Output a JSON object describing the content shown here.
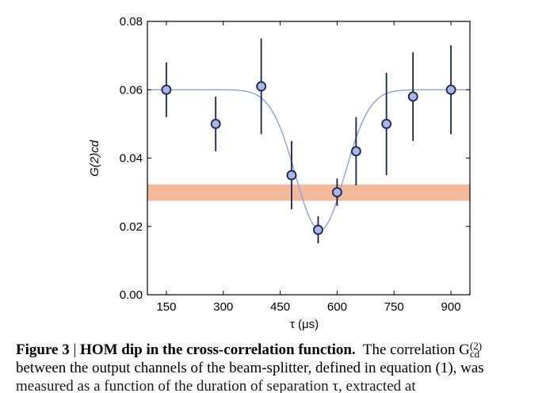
{
  "chart_data": {
    "type": "scatter",
    "title": "",
    "xlabel": "τ (μs)",
    "ylabel": "G(2)cd",
    "xlim": [
      100,
      950
    ],
    "ylim": [
      0,
      0.08
    ],
    "x_ticks": [
      "150",
      "300",
      "450",
      "600",
      "750",
      "900"
    ],
    "y_ticks": [
      "0.00",
      "0.02",
      "0.04",
      "0.06",
      "0.08"
    ],
    "series": [
      {
        "x": [
          150,
          280,
          400,
          480,
          550,
          600,
          650,
          730,
          800,
          900
        ],
        "y": [
          0.06,
          0.05,
          0.061,
          0.035,
          0.019,
          0.03,
          0.042,
          0.05,
          0.058,
          0.06
        ],
        "yerr": [
          0.008,
          0.008,
          0.014,
          0.01,
          0.004,
          0.004,
          0.01,
          0.015,
          0.013,
          0.013
        ]
      }
    ],
    "band": {
      "ymin": 0.0275,
      "ymax": 0.0323,
      "color": "#f4b89a"
    },
    "fit_curve": {
      "color": "#8fa8d8",
      "baseline": 0.06,
      "min": 0.019,
      "center": 555,
      "width": 65
    },
    "marker_color": "#a9b6e6",
    "marker_edge_color": "#1a2250",
    "errorbar_color": "#1a2250",
    "grid": false
  },
  "caption": {
    "figure_label": "Figure 3",
    "separator": " | ",
    "title": "HOM dip in the cross-correlation function.",
    "text_1": "The correlation G",
    "sup": "(2)",
    "sub": "cd",
    "line_2": "between the output channels of the beam-splitter, defined in equation (1), was",
    "line_3": "measured as a function of the duration of separation τ, extracted at"
  }
}
